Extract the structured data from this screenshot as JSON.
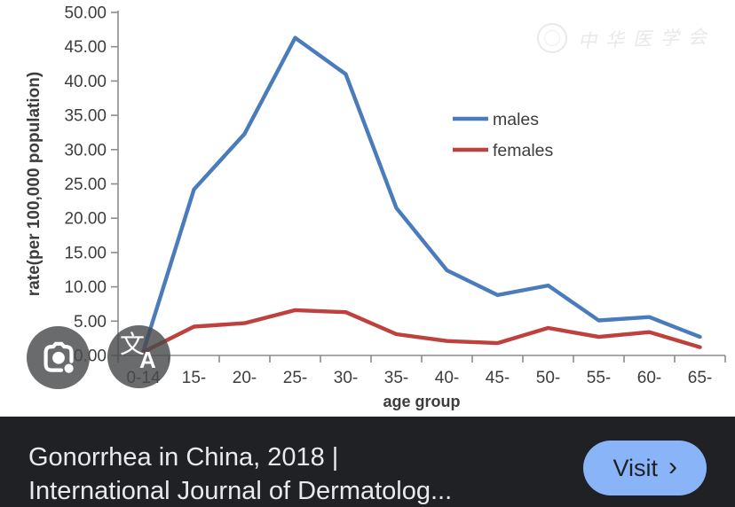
{
  "chart_data": {
    "type": "line",
    "title": "",
    "xlabel": "age group",
    "ylabel": "rate(per 100,000 population)",
    "categories": [
      "0-14",
      "15-",
      "20-",
      "25-",
      "30-",
      "35-",
      "40-",
      "45-",
      "50-",
      "55-",
      "60-",
      "65-"
    ],
    "series": [
      {
        "name": "males",
        "color": "#4a7cbc",
        "values": [
          0.6,
          24.2,
          32.3,
          46.3,
          41.0,
          21.5,
          12.4,
          8.8,
          10.2,
          5.1,
          5.6,
          2.7
        ]
      },
      {
        "name": "females",
        "color": "#bf413e",
        "values": [
          0.5,
          4.2,
          4.7,
          6.6,
          6.3,
          3.1,
          2.1,
          1.8,
          4.0,
          2.7,
          3.4,
          1.2
        ]
      }
    ],
    "ylim": [
      0,
      50
    ],
    "ytick_step": 5,
    "ytick_decimals": 2,
    "grid": false,
    "legend_position": "inside-right-upper",
    "axis_color": "#8c8c8c",
    "text_color": "#3d3d3d"
  },
  "watermark": {
    "text": "中华医学会"
  },
  "overlay": {
    "lens_button_icon": "google-lens-camera",
    "translate_icon_primary": "文",
    "translate_icon_secondary": "A"
  },
  "result_bar": {
    "title_line1": "Gonorrhea in China, 2018 |",
    "title_line2": "International Journal of Dermatolog...",
    "visit_label": "Visit",
    "visit_chevron": "›",
    "colors": {
      "bar_bg": "#202124",
      "title_text": "#e8eaed",
      "button_bg": "#8ab4f8",
      "button_text": "#202124"
    }
  }
}
